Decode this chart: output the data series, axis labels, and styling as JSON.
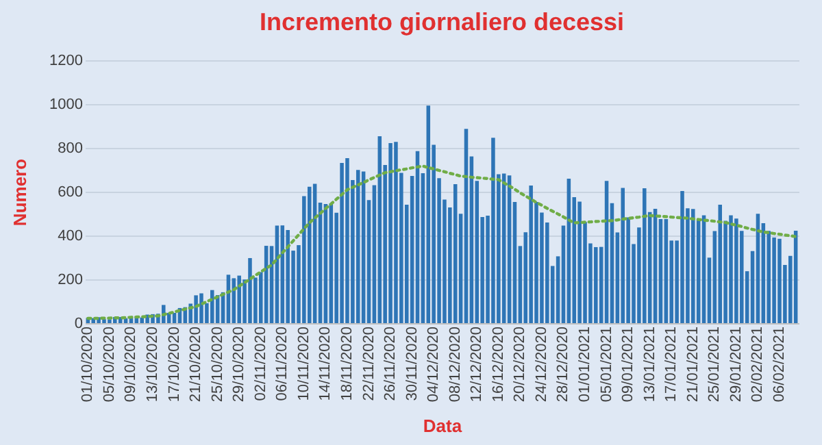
{
  "chart_data": {
    "type": "bar",
    "title": "Incremento giornaliero decessi",
    "xlabel": "Data",
    "ylabel": "Numero",
    "categories": [
      "01/10/2020",
      null,
      null,
      null,
      "05/10/2020",
      null,
      null,
      null,
      "09/10/2020",
      null,
      null,
      null,
      "13/10/2020",
      null,
      null,
      null,
      "17/10/2020",
      null,
      null,
      null,
      "21/10/2020",
      null,
      null,
      null,
      "25/10/2020",
      null,
      null,
      null,
      "29/10/2020",
      null,
      null,
      null,
      "02/11/2020",
      null,
      null,
      null,
      "06/11/2020",
      null,
      null,
      null,
      "10/11/2020",
      null,
      null,
      null,
      "14/11/2020",
      null,
      null,
      null,
      "18/11/2020",
      null,
      null,
      null,
      "22/11/2020",
      null,
      null,
      null,
      "26/11/2020",
      null,
      null,
      null,
      "30/11/2020",
      null,
      null,
      null,
      "04/12/2020",
      null,
      null,
      null,
      "08/12/2020",
      null,
      null,
      null,
      "12/12/2020",
      null,
      null,
      null,
      "16/12/2020",
      null,
      null,
      null,
      "20/12/2020",
      null,
      null,
      null,
      "24/12/2020",
      null,
      null,
      null,
      "28/12/2020",
      null,
      null,
      null,
      "01/01/2021",
      null,
      null,
      null,
      "05/01/2021",
      null,
      null,
      null,
      "09/01/2021",
      null,
      null,
      null,
      "13/01/2021",
      null,
      null,
      null,
      "17/01/2021",
      null,
      null,
      null,
      "21/01/2021",
      null,
      null,
      null,
      "25/01/2021",
      null,
      null,
      null,
      "29/01/2021",
      null,
      null,
      null,
      "02/02/2021",
      null,
      null,
      null,
      "06/02/2021",
      null,
      null,
      null
    ],
    "series": [
      {
        "color": "#2e75b6",
        "values": [
          24,
          23,
          27,
          18,
          17,
          28,
          28,
          22,
          31,
          29,
          26,
          39,
          41,
          43,
          83,
          47,
          47,
          69,
          73,
          89,
          127,
          136,
          91,
          151,
          128,
          141,
          221,
          205,
          217,
          199,
          297,
          208,
          233,
          353,
          352,
          445,
          446,
          425,
          331,
          356,
          580,
          623,
          636,
          550,
          544,
          546,
          504,
          731,
          753,
          653,
          699,
          692,
          562,
          630,
          853,
          722,
          822,
          827,
          686,
          541,
          672,
          785,
          684,
          993,
          814,
          662,
          564,
          528,
          634,
          499,
          887,
          761,
          649,
          484,
          491,
          846,
          680,
          683,
          674,
          553,
          352,
          415,
          628,
          553,
          505,
          459,
          261,
          305,
          445,
          659,
          575,
          555,
          462,
          364,
          347,
          348,
          649,
          548,
          414,
          617,
          483,
          361,
          437,
          616,
          507,
          522,
          475,
          475,
          377,
          377,
          603,
          524,
          521,
          472,
          492,
          299,
          420,
          541,
          467,
          492,
          477,
          421,
          237,
          329,
          499,
          456,
          421,
          391,
          385,
          266,
          307,
          422
        ]
      },
      {
        "type": "line",
        "color": "#70ad47",
        "values": [
          22,
          22,
          22,
          23,
          23,
          24,
          24,
          25,
          27,
          28,
          29,
          30,
          32,
          33,
          39,
          45,
          51,
          58,
          64,
          70,
          76,
          87,
          98,
          109,
          120,
          131,
          142,
          153,
          169,
          185,
          201,
          218,
          234,
          250,
          266,
          293,
          321,
          348,
          376,
          403,
          431,
          458,
          480,
          501,
          523,
          544,
          566,
          587,
          609,
          620,
          631,
          642,
          654,
          665,
          676,
          687,
          691,
          696,
          700,
          704,
          709,
          713,
          717,
          710,
          704,
          697,
          691,
          684,
          678,
          671,
          669,
          666,
          664,
          662,
          660,
          657,
          655,
          640,
          626,
          611,
          595,
          580,
          566,
          551,
          538,
          524,
          511,
          498,
          485,
          471,
          458,
          459,
          461,
          462,
          464,
          465,
          467,
          468,
          471,
          475,
          478,
          481,
          484,
          488,
          491,
          489,
          488,
          486,
          484,
          482,
          481,
          479,
          476,
          473,
          470,
          468,
          465,
          462,
          459,
          453,
          447,
          441,
          434,
          428,
          422,
          416,
          413,
          409,
          406,
          402,
          399,
          395
        ]
      }
    ],
    "ylim": [
      0,
      1200
    ],
    "yticks": [
      0,
      200,
      400,
      600,
      800,
      1000,
      1200
    ],
    "grid": "y",
    "line_style": "dotted"
  }
}
